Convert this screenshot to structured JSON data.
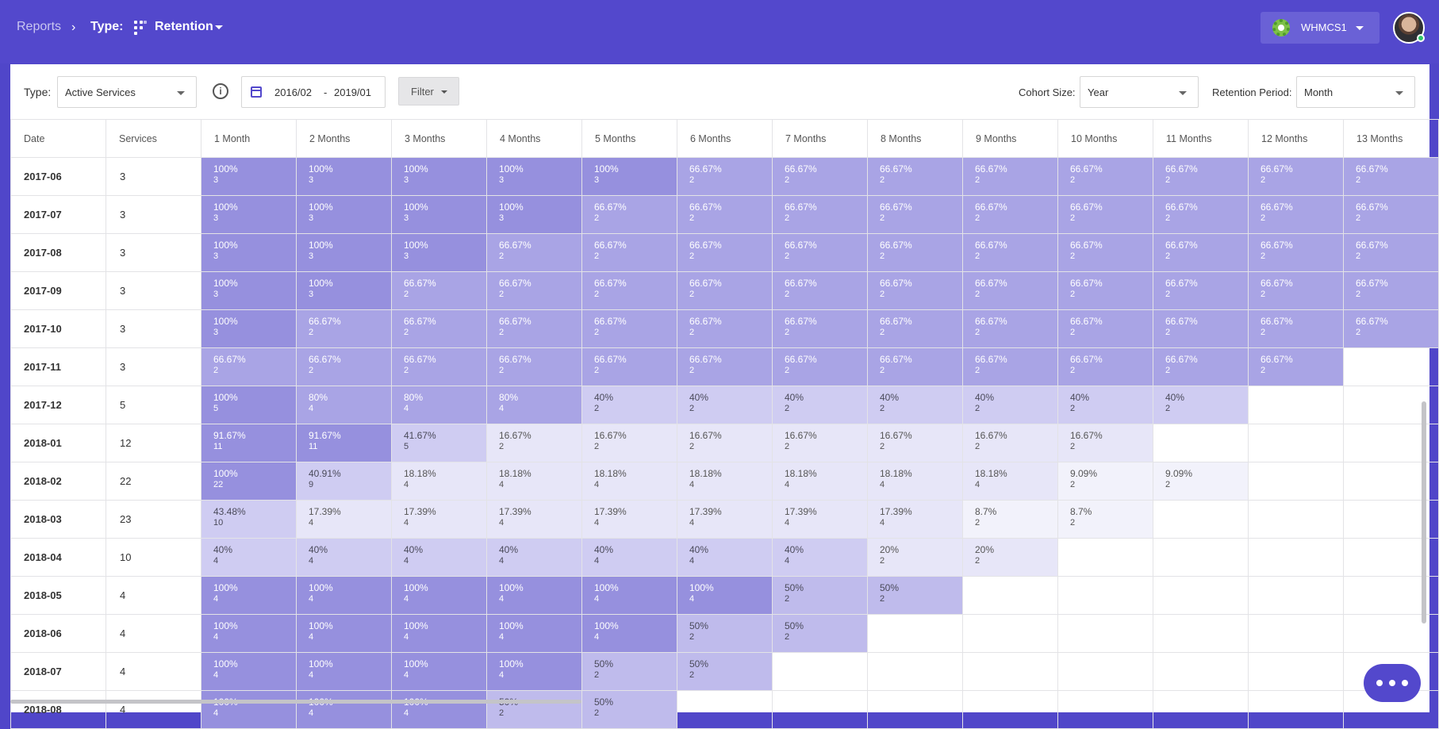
{
  "breadcrumb": {
    "reports": "Reports",
    "type_label": "Type:",
    "current": "Retention"
  },
  "account_button": "WHMCS1",
  "toolbar": {
    "type_label": "Type:",
    "type_value": "Active Services",
    "date_from": "2016/02",
    "date_sep": "-",
    "date_to": "2019/01",
    "filter_label": "Filter",
    "cohort_size_label": "Cohort Size:",
    "cohort_size_value": "Year",
    "retention_period_label": "Retention Period:",
    "retention_period_value": "Month"
  },
  "table": {
    "headers": [
      "Date",
      "Services",
      "1 Month",
      "2 Months",
      "3 Months",
      "4 Months",
      "5 Months",
      "6 Months",
      "7 Months",
      "8 Months",
      "9 Months",
      "10 Months",
      "11 Months",
      "12 Months",
      "13 Months"
    ],
    "rows": [
      {
        "date": "2017-06",
        "services": "3",
        "cells": [
          [
            "100%",
            "3"
          ],
          [
            "100%",
            "3"
          ],
          [
            "100%",
            "3"
          ],
          [
            "100%",
            "3"
          ],
          [
            "100%",
            "3"
          ],
          [
            "66.67%",
            "2"
          ],
          [
            "66.67%",
            "2"
          ],
          [
            "66.67%",
            "2"
          ],
          [
            "66.67%",
            "2"
          ],
          [
            "66.67%",
            "2"
          ],
          [
            "66.67%",
            "2"
          ],
          [
            "66.67%",
            "2"
          ],
          [
            "66.67%",
            "2"
          ]
        ]
      },
      {
        "date": "2017-07",
        "services": "3",
        "cells": [
          [
            "100%",
            "3"
          ],
          [
            "100%",
            "3"
          ],
          [
            "100%",
            "3"
          ],
          [
            "100%",
            "3"
          ],
          [
            "66.67%",
            "2"
          ],
          [
            "66.67%",
            "2"
          ],
          [
            "66.67%",
            "2"
          ],
          [
            "66.67%",
            "2"
          ],
          [
            "66.67%",
            "2"
          ],
          [
            "66.67%",
            "2"
          ],
          [
            "66.67%",
            "2"
          ],
          [
            "66.67%",
            "2"
          ],
          [
            "66.67%",
            "2"
          ]
        ]
      },
      {
        "date": "2017-08",
        "services": "3",
        "cells": [
          [
            "100%",
            "3"
          ],
          [
            "100%",
            "3"
          ],
          [
            "100%",
            "3"
          ],
          [
            "66.67%",
            "2"
          ],
          [
            "66.67%",
            "2"
          ],
          [
            "66.67%",
            "2"
          ],
          [
            "66.67%",
            "2"
          ],
          [
            "66.67%",
            "2"
          ],
          [
            "66.67%",
            "2"
          ],
          [
            "66.67%",
            "2"
          ],
          [
            "66.67%",
            "2"
          ],
          [
            "66.67%",
            "2"
          ],
          [
            "66.67%",
            "2"
          ]
        ]
      },
      {
        "date": "2017-09",
        "services": "3",
        "cells": [
          [
            "100%",
            "3"
          ],
          [
            "100%",
            "3"
          ],
          [
            "66.67%",
            "2"
          ],
          [
            "66.67%",
            "2"
          ],
          [
            "66.67%",
            "2"
          ],
          [
            "66.67%",
            "2"
          ],
          [
            "66.67%",
            "2"
          ],
          [
            "66.67%",
            "2"
          ],
          [
            "66.67%",
            "2"
          ],
          [
            "66.67%",
            "2"
          ],
          [
            "66.67%",
            "2"
          ],
          [
            "66.67%",
            "2"
          ],
          [
            "66.67%",
            "2"
          ]
        ]
      },
      {
        "date": "2017-10",
        "services": "3",
        "cells": [
          [
            "100%",
            "3"
          ],
          [
            "66.67%",
            "2"
          ],
          [
            "66.67%",
            "2"
          ],
          [
            "66.67%",
            "2"
          ],
          [
            "66.67%",
            "2"
          ],
          [
            "66.67%",
            "2"
          ],
          [
            "66.67%",
            "2"
          ],
          [
            "66.67%",
            "2"
          ],
          [
            "66.67%",
            "2"
          ],
          [
            "66.67%",
            "2"
          ],
          [
            "66.67%",
            "2"
          ],
          [
            "66.67%",
            "2"
          ],
          [
            "66.67%",
            "2"
          ]
        ]
      },
      {
        "date": "2017-11",
        "services": "3",
        "cells": [
          [
            "66.67%",
            "2"
          ],
          [
            "66.67%",
            "2"
          ],
          [
            "66.67%",
            "2"
          ],
          [
            "66.67%",
            "2"
          ],
          [
            "66.67%",
            "2"
          ],
          [
            "66.67%",
            "2"
          ],
          [
            "66.67%",
            "2"
          ],
          [
            "66.67%",
            "2"
          ],
          [
            "66.67%",
            "2"
          ],
          [
            "66.67%",
            "2"
          ],
          [
            "66.67%",
            "2"
          ],
          [
            "66.67%",
            "2"
          ]
        ]
      },
      {
        "date": "2017-12",
        "services": "5",
        "cells": [
          [
            "100%",
            "5"
          ],
          [
            "80%",
            "4"
          ],
          [
            "80%",
            "4"
          ],
          [
            "80%",
            "4"
          ],
          [
            "40%",
            "2"
          ],
          [
            "40%",
            "2"
          ],
          [
            "40%",
            "2"
          ],
          [
            "40%",
            "2"
          ],
          [
            "40%",
            "2"
          ],
          [
            "40%",
            "2"
          ],
          [
            "40%",
            "2"
          ]
        ]
      },
      {
        "date": "2018-01",
        "services": "12",
        "cells": [
          [
            "91.67%",
            "11"
          ],
          [
            "91.67%",
            "11"
          ],
          [
            "41.67%",
            "5"
          ],
          [
            "16.67%",
            "2"
          ],
          [
            "16.67%",
            "2"
          ],
          [
            "16.67%",
            "2"
          ],
          [
            "16.67%",
            "2"
          ],
          [
            "16.67%",
            "2"
          ],
          [
            "16.67%",
            "2"
          ],
          [
            "16.67%",
            "2"
          ]
        ]
      },
      {
        "date": "2018-02",
        "services": "22",
        "cells": [
          [
            "100%",
            "22"
          ],
          [
            "40.91%",
            "9"
          ],
          [
            "18.18%",
            "4"
          ],
          [
            "18.18%",
            "4"
          ],
          [
            "18.18%",
            "4"
          ],
          [
            "18.18%",
            "4"
          ],
          [
            "18.18%",
            "4"
          ],
          [
            "18.18%",
            "4"
          ],
          [
            "18.18%",
            "4"
          ],
          [
            "9.09%",
            "2"
          ],
          [
            "9.09%",
            "2"
          ]
        ]
      },
      {
        "date": "2018-03",
        "services": "23",
        "cells": [
          [
            "43.48%",
            "10"
          ],
          [
            "17.39%",
            "4"
          ],
          [
            "17.39%",
            "4"
          ],
          [
            "17.39%",
            "4"
          ],
          [
            "17.39%",
            "4"
          ],
          [
            "17.39%",
            "4"
          ],
          [
            "17.39%",
            "4"
          ],
          [
            "17.39%",
            "4"
          ],
          [
            "8.7%",
            "2"
          ],
          [
            "8.7%",
            "2"
          ]
        ]
      },
      {
        "date": "2018-04",
        "services": "10",
        "cells": [
          [
            "40%",
            "4"
          ],
          [
            "40%",
            "4"
          ],
          [
            "40%",
            "4"
          ],
          [
            "40%",
            "4"
          ],
          [
            "40%",
            "4"
          ],
          [
            "40%",
            "4"
          ],
          [
            "40%",
            "4"
          ],
          [
            "20%",
            "2"
          ],
          [
            "20%",
            "2"
          ]
        ]
      },
      {
        "date": "2018-05",
        "services": "4",
        "cells": [
          [
            "100%",
            "4"
          ],
          [
            "100%",
            "4"
          ],
          [
            "100%",
            "4"
          ],
          [
            "100%",
            "4"
          ],
          [
            "100%",
            "4"
          ],
          [
            "100%",
            "4"
          ],
          [
            "50%",
            "2"
          ],
          [
            "50%",
            "2"
          ]
        ]
      },
      {
        "date": "2018-06",
        "services": "4",
        "cells": [
          [
            "100%",
            "4"
          ],
          [
            "100%",
            "4"
          ],
          [
            "100%",
            "4"
          ],
          [
            "100%",
            "4"
          ],
          [
            "100%",
            "4"
          ],
          [
            "50%",
            "2"
          ],
          [
            "50%",
            "2"
          ]
        ]
      },
      {
        "date": "2018-07",
        "services": "4",
        "cells": [
          [
            "100%",
            "4"
          ],
          [
            "100%",
            "4"
          ],
          [
            "100%",
            "4"
          ],
          [
            "100%",
            "4"
          ],
          [
            "50%",
            "2"
          ],
          [
            "50%",
            "2"
          ]
        ]
      },
      {
        "date": "2018-08",
        "services": "4",
        "cells": [
          [
            "100%",
            "4"
          ],
          [
            "100%",
            "4"
          ],
          [
            "100%",
            "4"
          ],
          [
            "50%",
            "2"
          ],
          [
            "50%",
            "2"
          ]
        ]
      }
    ]
  },
  "colors": {
    "brand": "#5348cc",
    "level_1": "#9690de",
    "level_2": "#a9a4e5",
    "level_3": "#bfbbec",
    "level_4": "#cfccf2",
    "level_5": "#e7e6f8",
    "level_6": "#f2f2fb"
  },
  "icons": {
    "retention": "retention-grid-icon",
    "gear": "whmcs-gear-icon",
    "info": "info-icon",
    "calendar": "calendar-icon",
    "chat": "chat-dots-icon"
  }
}
